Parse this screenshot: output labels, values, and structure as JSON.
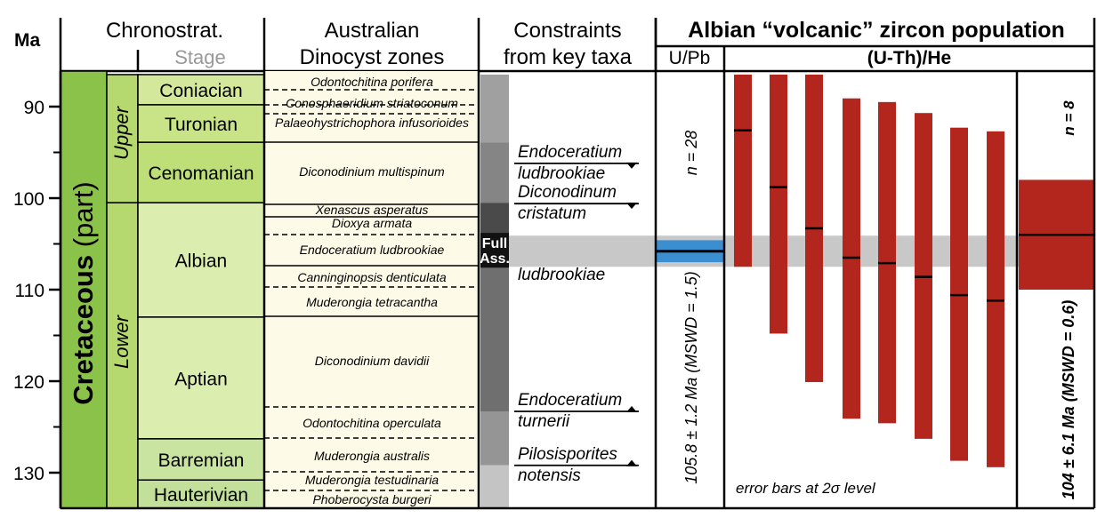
{
  "header": {
    "ma": "Ma",
    "chrono": "Chronostrat.",
    "stage": "Stage",
    "dino_line1": "Australian",
    "dino_line2": "Dinocyst zones",
    "constraints_line1": "Constraints",
    "constraints_line2": "from key taxa",
    "albian_title": "Albian “volcanic” zircon population",
    "upb": "U/Pb",
    "uthhe": "(U-Th)/He"
  },
  "age_ticks": [
    {
      "ma": 90,
      "label": "90"
    },
    {
      "ma": 100,
      "label": "100"
    },
    {
      "ma": 110,
      "label": "110"
    },
    {
      "ma": 120,
      "label": "120"
    },
    {
      "ma": 130,
      "label": "130"
    }
  ],
  "minor_ticks": [
    85,
    95,
    105,
    115,
    125
  ],
  "system": {
    "label_bold": "Cretaceous",
    "label_plain": " (part)"
  },
  "series": [
    {
      "label": "Upper",
      "top": 86.5,
      "base": 100.5
    },
    {
      "label": "Lower",
      "top": 100.5,
      "base": 134
    }
  ],
  "stages": [
    {
      "label": "Coniacian",
      "top": 86.5,
      "base": 89.8
    },
    {
      "label": "Turonian",
      "top": 89.8,
      "base": 93.9
    },
    {
      "label": "Cenomanian",
      "top": 93.9,
      "base": 100.5
    },
    {
      "label": "Albian",
      "top": 100.5,
      "base": 113.0
    },
    {
      "label": "Aptian",
      "top": 113.0,
      "base": 126.3
    },
    {
      "label": "Barremian",
      "top": 126.3,
      "base": 130.8
    },
    {
      "label": "Hauterivian",
      "top": 130.8,
      "base": 134
    }
  ],
  "dinocyst_zones": [
    "Odontochitina porifera",
    "Conosphaeridium striatoconum",
    "Palaeohystrichophora infusorioides",
    "Diconodinium multispinum",
    "Xenascus asperatus",
    "Dioxya armata",
    "Endoceratium ludbrookiae",
    "Canninginopsis denticulata",
    "Muderongia tetracantha",
    "Diconodinium davidii",
    "Odontochitina operculata",
    "Muderongia australis",
    "Muderongia testudinaria",
    "Phoberocysta burgeri"
  ],
  "constraint_taxa": [
    {
      "line1": "Endoceratium",
      "line2": "ludbrookiae",
      "ma": 96.2,
      "direction": "down"
    },
    {
      "line1": "Diconodinum",
      "line2": "cristatum",
      "ma": 100.6,
      "direction": "down"
    },
    {
      "line1": "Endoceratium",
      "line2": "ludbrookiae",
      "ma": 107.3,
      "direction": "up"
    },
    {
      "line1": "Endoceratium",
      "line2": "turnerii",
      "ma": 123.3,
      "direction": "up"
    },
    {
      "line1": "Pilosisporites",
      "line2": "notensis",
      "ma": 129.2,
      "direction": "up"
    }
  ],
  "full_assemblage": {
    "line1": "Full",
    "line2": "Ass.",
    "top": 103.8,
    "base": 107.6
  },
  "upb": {
    "n_label": "n = 28",
    "age_label": "105.8 ± 1.2 Ma (MSWD = 1.5)",
    "mean_ma": 105.8,
    "band_top": 104.6,
    "band_base": 107.0,
    "band_color": "#3b8fd0"
  },
  "highlight_band": {
    "top": 104.1,
    "base": 107.5,
    "color": "#c8c8c8"
  },
  "uthhe": {
    "note": "error bars at 2σ level",
    "n_label": "n = 8",
    "age_label": "104 ± 6.1 Ma (MSWD = 0.6)",
    "mean_ma": 104.0,
    "mean_top": 98.0,
    "mean_base": 110.0,
    "bar_color": "#b3261e",
    "grains": [
      {
        "age": 92.6,
        "min": 86.5,
        "max": 107.5
      },
      {
        "age": 98.8,
        "min": 86.5,
        "max": 114.8
      },
      {
        "age": 103.3,
        "min": 86.5,
        "max": 120.1
      },
      {
        "age": 106.5,
        "min": 89.1,
        "max": 124.1
      },
      {
        "age": 107.1,
        "min": 89.5,
        "max": 124.6
      },
      {
        "age": 108.6,
        "min": 90.7,
        "max": 126.3
      },
      {
        "age": 110.6,
        "min": 92.3,
        "max": 128.7
      },
      {
        "age": 111.2,
        "min": 92.7,
        "max": 129.4
      }
    ]
  },
  "colors": {
    "cretaceous": "#8bc34a",
    "series": "#b5d96e",
    "coniacian": "#d3e89a",
    "turonian": "#c9e487",
    "cenomanian": "#bede78",
    "albian": "#dcedb0",
    "aptian": "#dcedb0",
    "barremian": "#c9e4a0",
    "hauterivian": "#c2e09a",
    "dino_bg": "#fdfbe7"
  }
}
